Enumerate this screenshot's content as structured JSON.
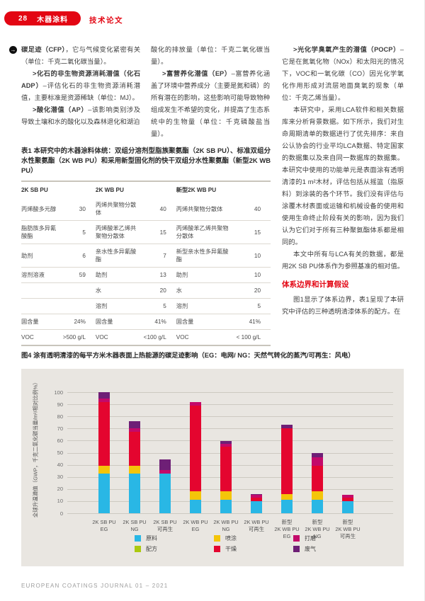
{
  "header": {
    "page_number": "28",
    "section": "木器涂料",
    "article_type": "技术论文"
  },
  "icons": {
    "continuation_arrow": "→"
  },
  "article": {
    "col1": {
      "p1": {
        "lead": "碳足迹（CFP）",
        "rest": "，它与气候变化紧密有关（单位：千克二氧化碳当量）。"
      },
      "p2": {
        "lead": ">化石的非生物资源消耗潜值（化石ADP）",
        "rest": "–评估化石的非生物资源消耗潜值，主要标准是资源稀缺（单位：MJ）。"
      },
      "p3": {
        "lead": ">酸化潜值（AP）",
        "rest": "–该影响类别涉及导致土壤和水的酸化以及森林退化和湖泊"
      }
    },
    "col2": {
      "p1": "酸化的排放量（单位：千克二氧化碳当量）。",
      "p2": {
        "lead": ">富营养化潜值（EP）",
        "rest": "–富营养化涵盖了环境中营养成分（主要是氮和磷）的所有潜在的影响，这些影响可能导致物种组成发生不希望的变化，并提高了生态系统中的生物量（单位：千克磷酸盐当量）。"
      }
    },
    "col3": {
      "p1": {
        "lead": ">光化学臭氧产生的潜值（POCP）",
        "rest": "–它是在氮氧化物（NOx）和太阳光的情况下，VOC和一氧化碳（CO）因光化学氧化作用形成对流层地面臭氧的现象（单位：千克乙烯当量）。"
      },
      "p2": "本研究中，采用LCA软件和相关数据库来分析背景数据。如下所示，我们对生命周期清单的数据进行了优先排序：来自公认协会的行业平均LCA数据、特定国家的数据集以及来自同一数据库的数据集。本研究中使用的功能单元是表面涂有透明清漆的1 m²木材，评估包括从摇篮（指原料）到涂装的各个环节。我们没有评估与涂覆木材表面或运输和机械设备的使用和使用生命终止阶段有关的影响，因为我们认为它们对于所有三种聚氨酯体系都是相同的。",
      "p3": "本文中所有与LCA有关的数据，都是用2K SB PU体系作为参照基准的相对值。",
      "heading": "体系边界和计算假设",
      "p4": "图1显示了体系边界，表1呈现了本研究中评估的三种透明清漆体系的配方。在"
    }
  },
  "table": {
    "caption": "表1 本研究中的木器涂料体统：双组分溶剂型脂族聚氨酯（2K SB PU）、标准双组分水性聚氨酯（2K WB PU）和采用新型固化剂的快干双组分水性聚氨酯（新型2K WB PU）",
    "headers": [
      "2K SB PU",
      "2K WB PU",
      "新型2K WB PU"
    ],
    "rows": [
      [
        "丙烯酸多元醇",
        "30",
        "丙烯共聚物分散体",
        "40",
        "丙烯共聚物分散体",
        "40"
      ],
      [
        "脂肪族多异氰酸酯",
        "5",
        "丙烯酸苯乙烯共聚物分散体",
        "15",
        "丙烯酸苯乙烯共聚物分散体",
        "15"
      ],
      [
        "助剂",
        "6",
        "亲水性多异氰酸酯",
        "7",
        "新型亲水性多异氰酸酯",
        "10"
      ],
      [
        "溶剂溶液",
        "59",
        "助剂",
        "13",
        "助剂",
        "10"
      ],
      [
        "",
        "",
        "水",
        "20",
        "水",
        "20"
      ],
      [
        "",
        "",
        "溶剂",
        "5",
        "溶剂",
        "5"
      ],
      [
        "固含量",
        "24%",
        "固含量",
        "41%",
        "固含量",
        "41%"
      ],
      [
        "VOC",
        ">500 g/L",
        "VOC",
        "<100 g/L",
        "VOC",
        "< 100 g/L"
      ]
    ]
  },
  "figure": {
    "caption": "图4 涂有透明清漆的每平方米木器表面上热能源的碳足迹影响（EG：电网/ NG：天然气转化的蒸汽/可再生：风电）"
  },
  "chart_data": {
    "type": "bar",
    "stacked": true,
    "title": "图4 涂有透明清漆的每平方米木器表面上热能源的碳足迹影响",
    "ylabel": "全球升温潜值（GWP，千克二氧化碳当量/m²/相对比例%）",
    "ylim": [
      0,
      100
    ],
    "ytick_step": 10,
    "grid": true,
    "legend_position": "bottom",
    "panel_background": "#e9e6e1",
    "categories": [
      [
        "2K SB PU",
        "EG"
      ],
      [
        "2K SB PU",
        "NG"
      ],
      [
        "2K SB PU",
        "可再生"
      ],
      [
        "2K WB PU",
        "EG"
      ],
      [
        "2K WB PU",
        "NG"
      ],
      [
        "2K WB PU",
        "可再生"
      ],
      [
        "新型",
        "2K WB PU",
        "EG"
      ],
      [
        "新型",
        "2K WB PU",
        "NG"
      ],
      [
        "新型",
        "2K WB PU",
        "可再生"
      ]
    ],
    "series": [
      {
        "name": "原料",
        "color": "#29b7e5",
        "values": [
          33,
          33,
          33,
          11,
          11,
          10,
          11,
          11,
          10
        ]
      },
      {
        "name": "配方",
        "color": "#abc90f",
        "values": [
          0,
          0,
          0,
          0,
          0,
          0,
          0,
          0,
          0
        ]
      },
      {
        "name": "喷涂",
        "color": "#f4c50a",
        "values": [
          6,
          6,
          0,
          7,
          7,
          0,
          5,
          7,
          0
        ]
      },
      {
        "name": "干燥",
        "color": "#e4052f",
        "values": [
          53,
          28,
          0,
          71,
          37,
          3,
          54,
          21,
          3
        ]
      },
      {
        "name": "打磨",
        "color": "#c30a6a",
        "values": [
          3,
          3,
          2.5,
          3,
          2.5,
          2,
          0,
          7,
          2
        ]
      },
      {
        "name": "废气",
        "color": "#6e1f76",
        "values": [
          5,
          6,
          9,
          0,
          2,
          1,
          3,
          3.5,
          0
        ]
      }
    ],
    "legend_order": [
      "原料",
      "喷涂",
      "打磨",
      "配方",
      "干燥",
      "废气"
    ]
  },
  "footer": {
    "text": "EUROPEAN COATINGS JOURNAL 01 – 2021"
  }
}
